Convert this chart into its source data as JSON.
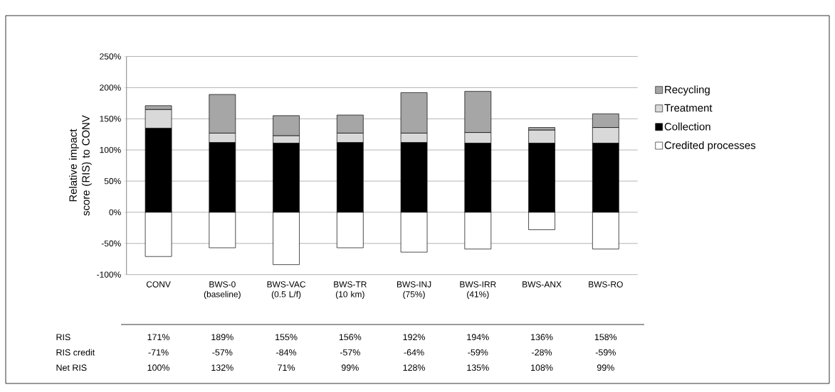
{
  "chart_data": {
    "type": "bar",
    "stacked": true,
    "ylabel": "Relative impact score (RIS) to CONV",
    "categories": [
      "CONV",
      "BWS-0 (baseline)",
      "BWS-VAC (0.5 L/f)",
      "BWS-TR (10 km)",
      "BWS-INJ (75%)",
      "BWS-IRR (41%)",
      "BWS-ANX",
      "BWS-RO"
    ],
    "series": [
      {
        "name": "Collection",
        "color": "#000000",
        "values": [
          135,
          112,
          111,
          112,
          112,
          111,
          111,
          111
        ]
      },
      {
        "name": "Treatment",
        "color": "#d9d9d9",
        "values": [
          30,
          15,
          12,
          15,
          15,
          17,
          21,
          25
        ]
      },
      {
        "name": "Recycling",
        "color": "#a6a6a6",
        "values": [
          6,
          62,
          32,
          29,
          65,
          66,
          4,
          22
        ]
      },
      {
        "name": "Credited processes",
        "color": "#ffffff",
        "values": [
          -71,
          -57,
          -84,
          -57,
          -64,
          -59,
          -28,
          -59
        ],
        "value_labels": [
          "-71%",
          "-57%",
          "-84%",
          "-57%",
          "-64%",
          "-59%",
          "-28%",
          "-59%"
        ]
      }
    ],
    "ylim": [
      -100,
      250
    ],
    "yticks": [
      {
        "value": -100,
        "label": "-100%"
      },
      {
        "value": -50,
        "label": "-50%"
      },
      {
        "value": 0,
        "label": "0%"
      },
      {
        "value": 50,
        "label": "50%"
      },
      {
        "value": 100,
        "label": "100%"
      },
      {
        "value": 150,
        "label": "150%"
      },
      {
        "value": 200,
        "label": "200%"
      },
      {
        "value": 250,
        "label": "250%"
      }
    ],
    "grid": "y",
    "legend": "right",
    "annotations": [
      "RIS",
      "RIS credit",
      "Net RIS",
      "171%",
      "189%",
      "155%",
      "156%",
      "192%",
      "194%",
      "136%",
      "158%",
      "100%",
      "132%",
      "71%",
      "99%",
      "128%",
      "135%",
      "108%",
      "99%"
    ]
  }
}
